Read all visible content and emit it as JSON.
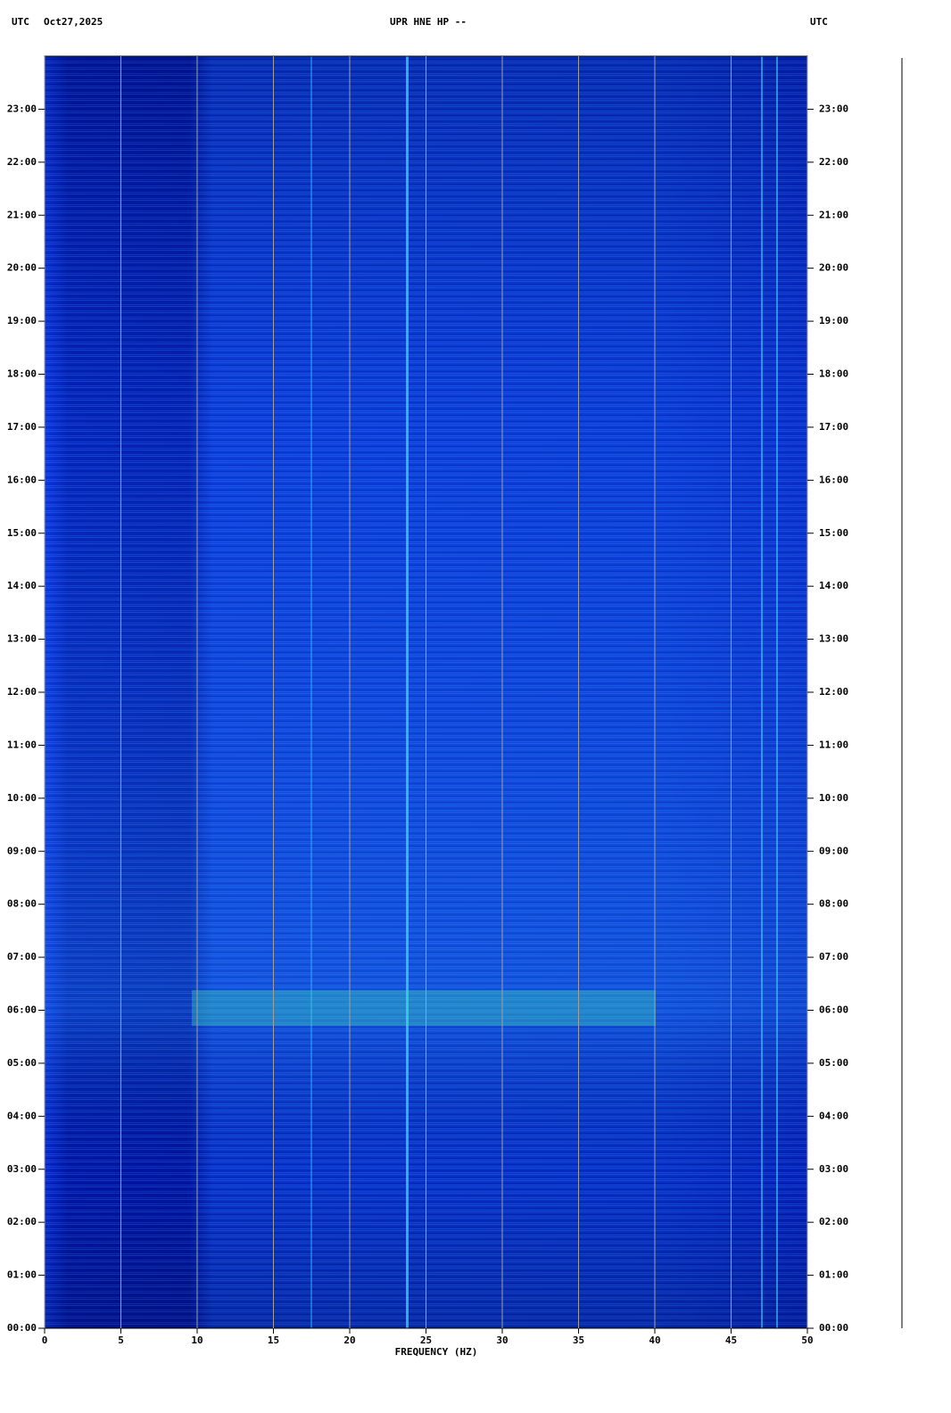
{
  "chart_data": {
    "type": "spectrogram",
    "title": "UPR HNE HP --",
    "date": "Oct27,2025",
    "time_zone_left": "UTC",
    "time_zone_right": "UTC",
    "xlabel": "FREQUENCY (HZ)",
    "xlim": [
      0,
      50
    ],
    "xticks": [
      0,
      5,
      10,
      15,
      20,
      25,
      30,
      35,
      40,
      45,
      50
    ],
    "ylim": [
      0,
      24
    ],
    "yticks": [
      {
        "value": 0,
        "label": "00:00"
      },
      {
        "value": 1,
        "label": "01:00"
      },
      {
        "value": 2,
        "label": "02:00"
      },
      {
        "value": 3,
        "label": "03:00"
      },
      {
        "value": 4,
        "label": "04:00"
      },
      {
        "value": 5,
        "label": "05:00"
      },
      {
        "value": 6,
        "label": "06:00"
      },
      {
        "value": 7,
        "label": "07:00"
      },
      {
        "value": 8,
        "label": "08:00"
      },
      {
        "value": 9,
        "label": "09:00"
      },
      {
        "value": 10,
        "label": "10:00"
      },
      {
        "value": 11,
        "label": "11:00"
      },
      {
        "value": 12,
        "label": "12:00"
      },
      {
        "value": 13,
        "label": "13:00"
      },
      {
        "value": 14,
        "label": "14:00"
      },
      {
        "value": 15,
        "label": "15:00"
      },
      {
        "value": 16,
        "label": "16:00"
      },
      {
        "value": 17,
        "label": "17:00"
      },
      {
        "value": 18,
        "label": "18:00"
      },
      {
        "value": 19,
        "label": "19:00"
      },
      {
        "value": 20,
        "label": "20:00"
      },
      {
        "value": 21,
        "label": "21:00"
      },
      {
        "value": 22,
        "label": "22:00"
      },
      {
        "value": 23,
        "label": "23:00"
      }
    ],
    "grid": true
  }
}
